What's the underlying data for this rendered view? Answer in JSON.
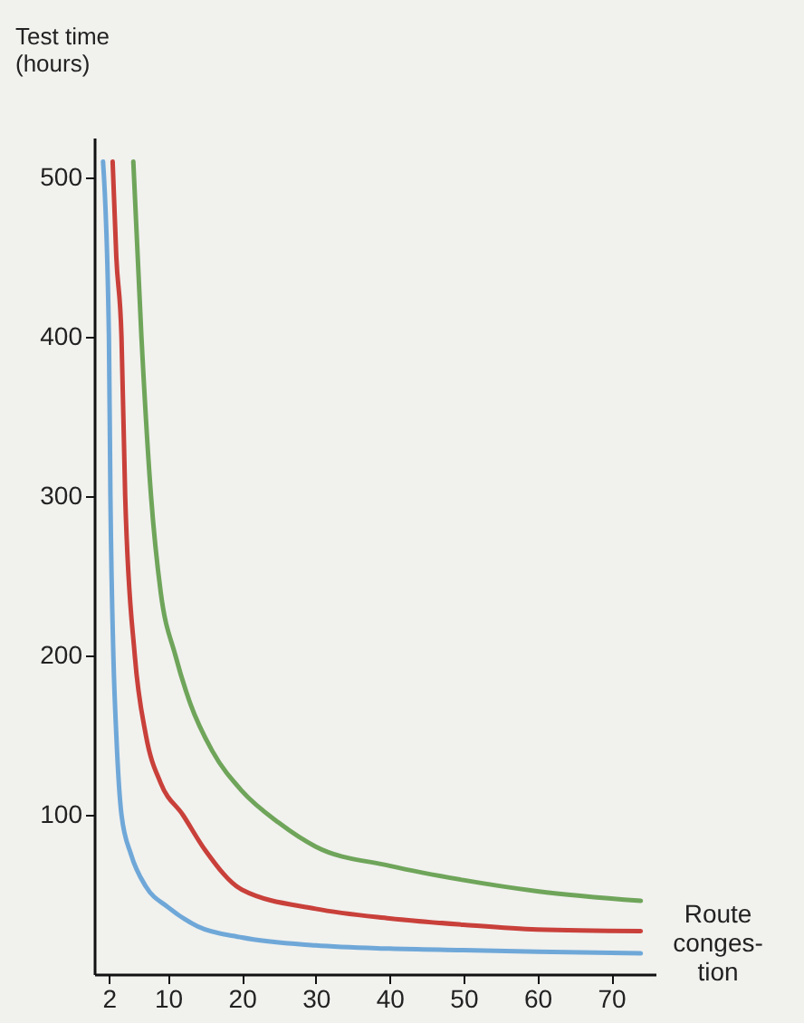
{
  "chart_data": {
    "type": "line",
    "xlabel": "Route\nconges-\ntion",
    "ylabel": "Test time\n(hours)",
    "xlim": [
      0,
      76
    ],
    "ylim": [
      0,
      525
    ],
    "xticks": [
      2,
      10,
      20,
      30,
      40,
      50,
      60,
      70
    ],
    "yticks": [
      100,
      200,
      300,
      400,
      500
    ],
    "grid": false,
    "legend": false,
    "series": [
      {
        "color": "#6fa8d8",
        "x": [
          1.2,
          2,
          2.2,
          2.6,
          3,
          3.7,
          5,
          7,
          10,
          14,
          20,
          30,
          40,
          50,
          60,
          74
        ],
        "values": [
          510,
          400,
          300,
          200,
          150,
          100,
          75,
          55,
          42,
          30,
          23,
          18,
          16,
          15,
          14,
          13
        ]
      },
      {
        "color": "#c9403a",
        "x": [
          2.5,
          3,
          3.7,
          4.2,
          5.5,
          7,
          9,
          12,
          15,
          20,
          30,
          40,
          50,
          60,
          74
        ],
        "values": [
          510,
          450,
          400,
          300,
          200,
          150,
          120,
          100,
          78,
          53,
          41,
          35,
          31,
          28,
          27
        ]
      },
      {
        "color": "#6fa55a",
        "x": [
          5.3,
          6.4,
          7.7,
          9,
          11,
          13,
          16,
          20,
          25,
          30,
          40,
          50,
          60,
          74
        ],
        "values": [
          510,
          400,
          300,
          240,
          200,
          170,
          140,
          115,
          95,
          80,
          68,
          59,
          52,
          46
        ]
      }
    ]
  }
}
